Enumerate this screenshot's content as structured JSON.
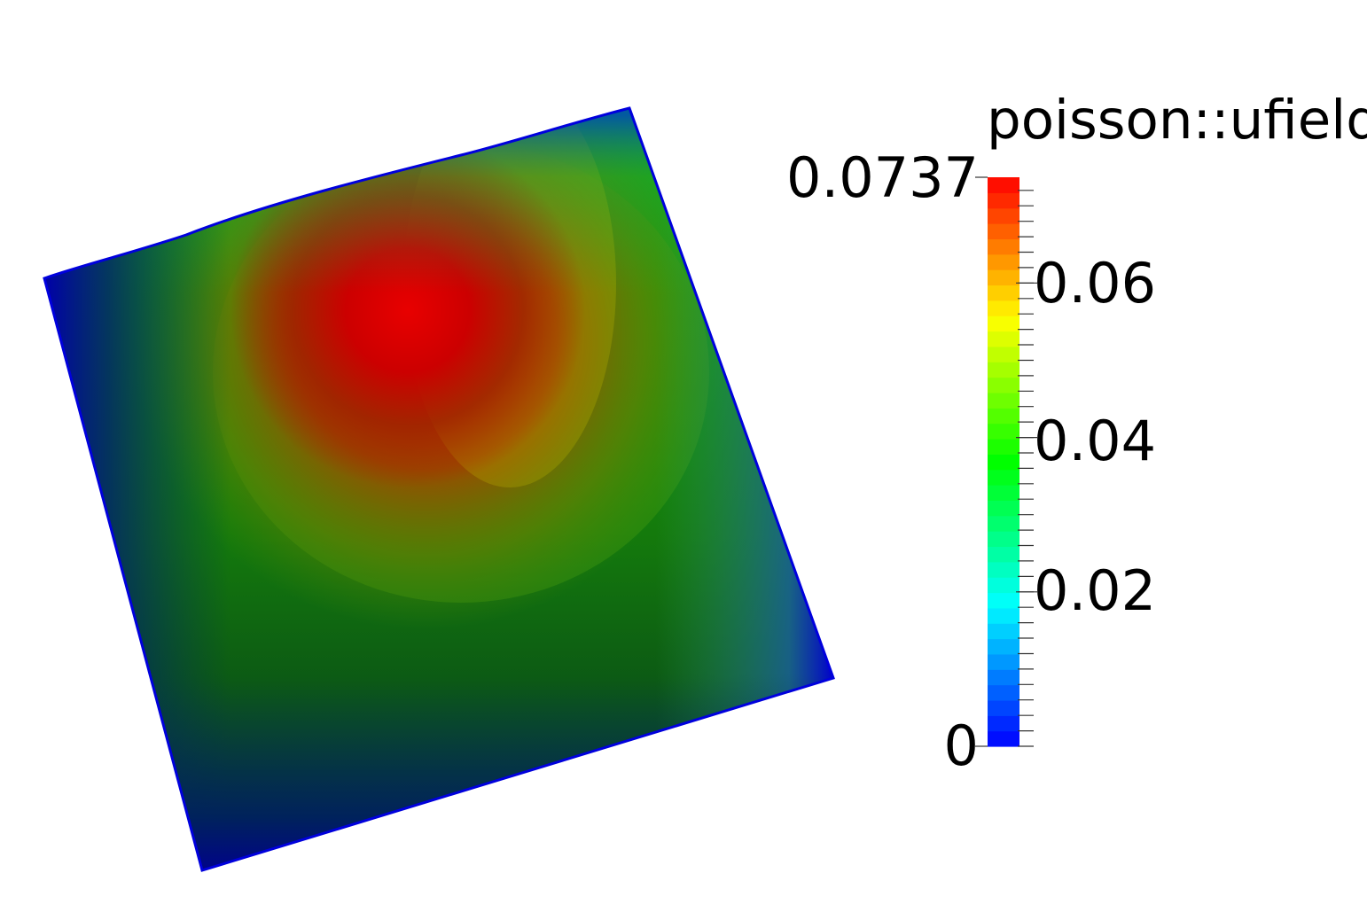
{
  "legend": {
    "title": "poisson::ufield",
    "max_label": "0.0737",
    "min_label": "0",
    "tick_labels": [
      "0.06",
      "0.04",
      "0.02"
    ],
    "range": [
      0,
      0.0737
    ],
    "tick_values": [
      0.06,
      0.04,
      0.02
    ],
    "colormap": [
      "#0000ff",
      "#00ffff",
      "#00ff00",
      "#ffff00",
      "#ff0000"
    ],
    "color_levels": 37
  },
  "field": {
    "name": "poisson::ufield",
    "peak_color": "#e00000",
    "mid_color": "#1d9a12",
    "edge_color": "#0000cc",
    "shadow_color": "#001040"
  }
}
